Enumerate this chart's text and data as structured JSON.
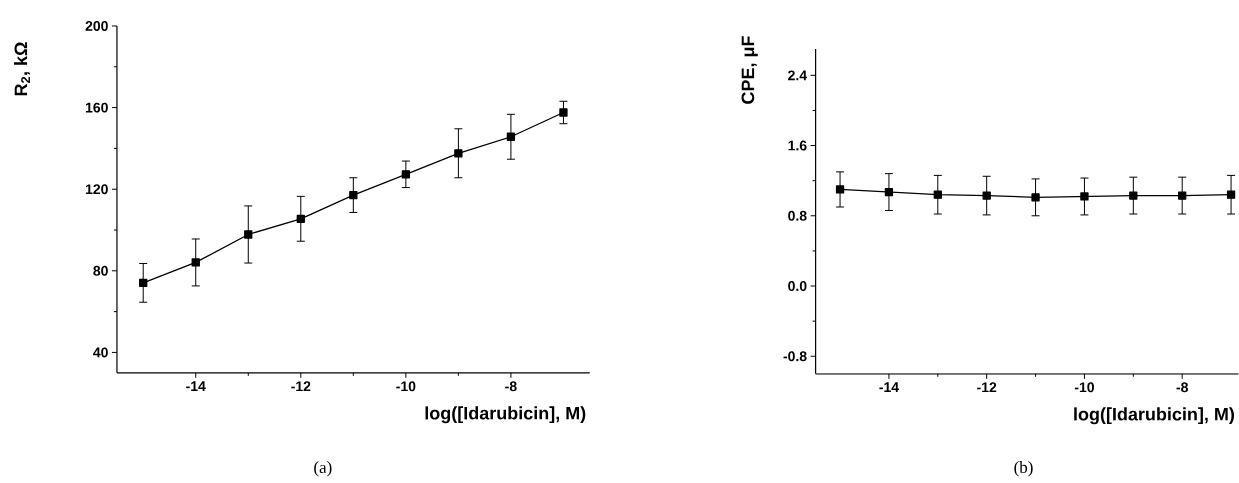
{
  "chart_data": [
    {
      "type": "line",
      "xlabel": "log([Idarubicin], M)",
      "ylabel": "R$_{2}$, kΩ",
      "annotations": [
        "(a)"
      ],
      "x": [
        -15,
        -14,
        -13,
        -12,
        -11,
        -10,
        -9,
        -8,
        -7
      ],
      "values": [
        74.1,
        84.1,
        97.8,
        105.5,
        117.1,
        127.3,
        137.6,
        145.7,
        157.6
      ],
      "errors": [
        9.5,
        11.5,
        14,
        11,
        8.5,
        6.5,
        12,
        11,
        5.5
      ],
      "color": "#000000",
      "marker": "square",
      "line_style": "solid",
      "xlim": [
        -15.5,
        -6.5
      ],
      "ylim": [
        30,
        200
      ],
      "xticks": [
        -14,
        -12,
        -10,
        -8
      ],
      "yticks": [
        40,
        80,
        120,
        160,
        200
      ]
    },
    {
      "type": "line",
      "xlabel": "log([Idarubicin], M)",
      "ylabel": "CPE, μF",
      "annotations": [
        "(b)"
      ],
      "x": [
        -15,
        -14,
        -13,
        -12,
        -11,
        -10,
        -9,
        -8,
        -7
      ],
      "values": [
        1.1,
        1.07,
        1.04,
        1.03,
        1.01,
        1.02,
        1.03,
        1.03,
        1.04
      ],
      "errors": [
        0.2,
        0.21,
        0.22,
        0.22,
        0.21,
        0.21,
        0.21,
        0.21,
        0.22
      ],
      "color": "#000000",
      "marker": "square",
      "line_style": "solid",
      "xlim": [
        -15.5,
        -6.85
      ],
      "ylim": [
        -1.0,
        2.7
      ],
      "xticks": [
        -14,
        -12,
        -10,
        -8
      ],
      "yticks": [
        {
          "value": -0.8,
          "label": "-0.8"
        },
        {
          "value": 0,
          "label": "0.0"
        },
        0.8,
        1.6,
        2.4
      ]
    }
  ]
}
